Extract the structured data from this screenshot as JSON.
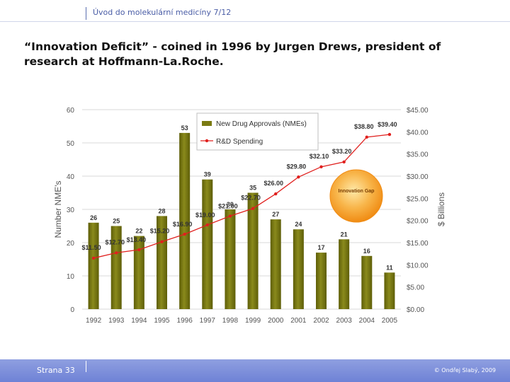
{
  "header": {
    "course": "Úvod do molekulární medicíny 7/12"
  },
  "slide": {
    "title": "“Innovation Deficit” - coined in 1996 by Jurgen Drews, president of research at Hoffmann-La.Roche."
  },
  "footer": {
    "page": "Strana 33",
    "copyright": "© Ondřej Slabý, 2009"
  },
  "colors": {
    "bars": "#7a7a12",
    "line": "#e0201e",
    "footer": "#7b8edb",
    "gap": "#f5a623"
  },
  "chart_data": {
    "type": "bar",
    "categories": [
      "1992",
      "1993",
      "1994",
      "1995",
      "1996",
      "1997",
      "1998",
      "1999",
      "2000",
      "2001",
      "2002",
      "2003",
      "2004",
      "2005"
    ],
    "series": [
      {
        "name": "New Drug Approvals (NMEs)",
        "type": "bar",
        "axis": "left",
        "values": [
          26,
          25,
          22,
          28,
          53,
          39,
          30,
          35,
          27,
          24,
          17,
          21,
          16,
          11
        ],
        "labels": [
          "26",
          "25",
          "22",
          "28",
          "53",
          "39",
          "30",
          "35",
          "27",
          "24",
          "17",
          "21",
          "16",
          "11"
        ]
      },
      {
        "name": "R&D Spending",
        "type": "line",
        "axis": "right",
        "values": [
          11.5,
          12.7,
          13.4,
          15.2,
          16.9,
          19.0,
          21.0,
          22.7,
          26.0,
          29.8,
          32.1,
          33.2,
          38.8,
          39.4
        ],
        "labels": [
          "$11.50",
          "$12.70",
          "$13.40",
          "$15.20",
          "$16.90",
          "$19.00",
          "$21.00",
          "$22.70",
          "$26.00",
          "$29.80",
          "$32.10",
          "$33.20",
          "$38.80",
          "$39.40"
        ]
      }
    ],
    "ylabel": "Number NME's",
    "y2label": "$ Billions",
    "ylim": [
      0,
      60
    ],
    "y2lim": [
      0,
      45
    ],
    "yticks": [
      "0",
      "10",
      "20",
      "30",
      "40",
      "50",
      "60"
    ],
    "y2ticks": [
      "$0.00",
      "$5.00",
      "$10.00",
      "$15.00",
      "$20.00",
      "$25.00",
      "$30.00",
      "$35.00",
      "$40.00",
      "$45.00"
    ],
    "annotation": "Innovation Gap",
    "legend": "top-center",
    "grid": true
  }
}
